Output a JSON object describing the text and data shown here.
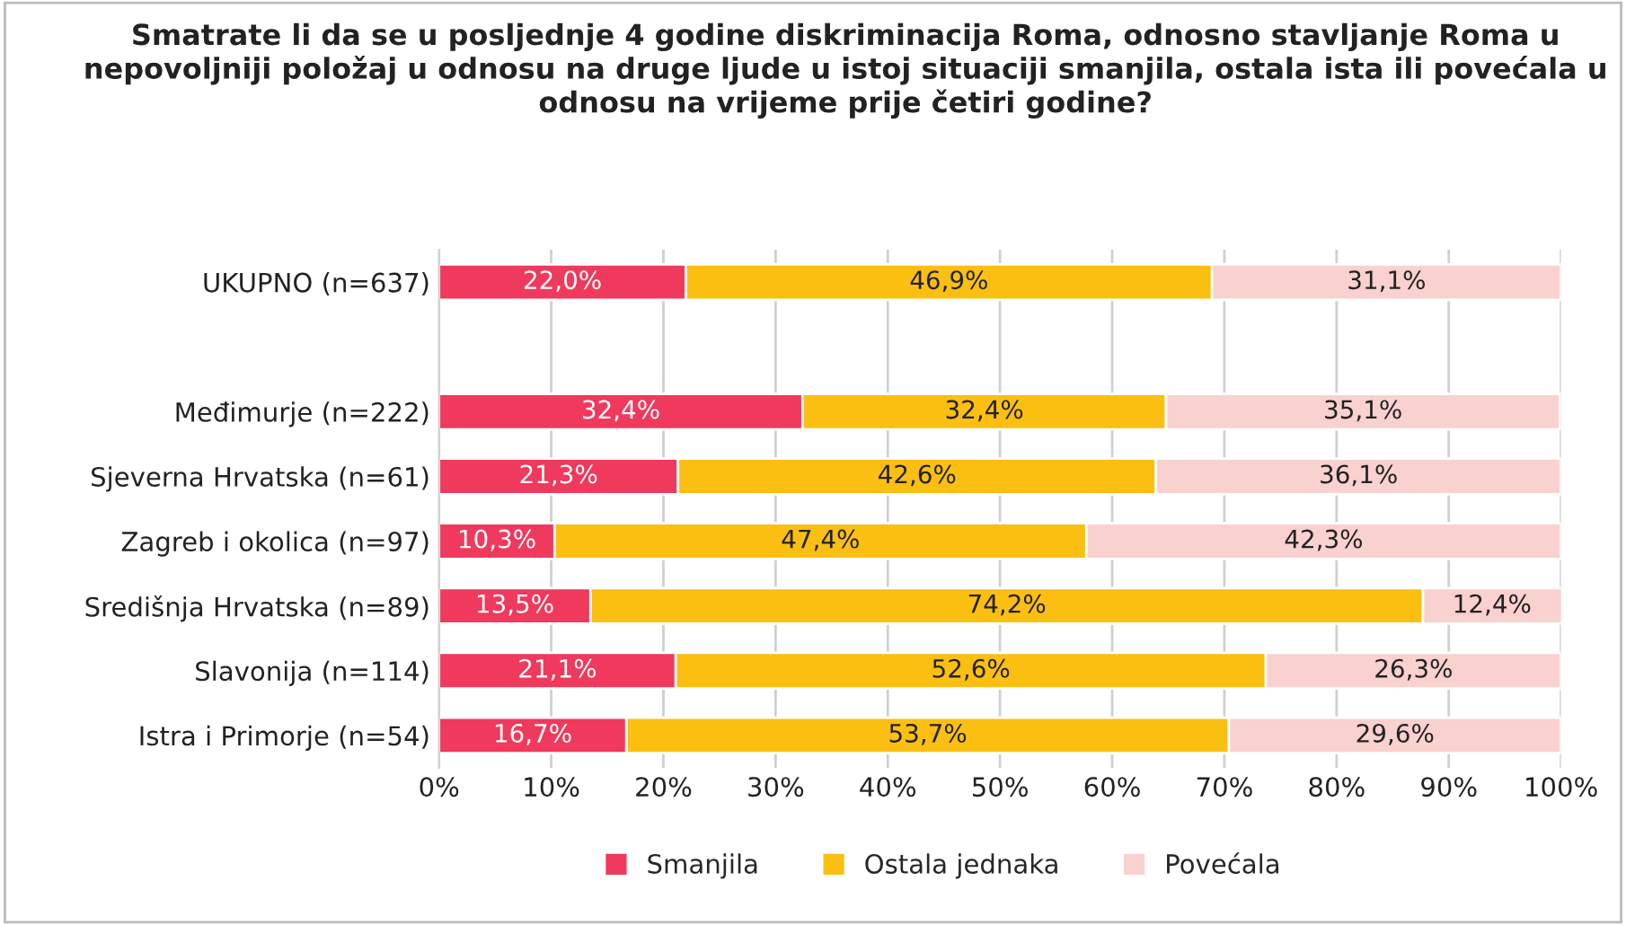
{
  "chart_data": {
    "type": "bar",
    "orientation": "horizontal",
    "stacked": true,
    "title": "Smatrate li da se u posljednje 4 godine diskriminacija Roma, odnosno stavljanje Roma u nepovoljniji položaj u odnosu na druge ljude u istoj situaciji smanjila, ostala ista ili povećala u odnosu na vrijeme prije četiri godine?",
    "categories": [
      "UKUPNO (n=637)",
      null,
      "Međimurje (n=222)",
      "Sjeverna Hrvatska (n=61)",
      "Zagreb i okolica (n=97)",
      "Središnja Hrvatska (n=89)",
      "Slavonija (n=114)",
      "Istra i Primorje (n=54)"
    ],
    "series": [
      {
        "name": "Smanjila",
        "color": "#ef3a5d",
        "values": [
          22.0,
          null,
          32.4,
          21.3,
          10.3,
          13.5,
          21.1,
          16.7
        ],
        "value_labels": [
          "22,0%",
          null,
          "32,4%",
          "21,3%",
          "10,3%",
          "13,5%",
          "21,1%",
          "16,7%"
        ]
      },
      {
        "name": "Ostala jednaka",
        "color": "#fbbf12",
        "values": [
          46.9,
          null,
          32.4,
          42.6,
          47.4,
          74.2,
          52.6,
          53.7
        ],
        "value_labels": [
          "46,9%",
          null,
          "32,4%",
          "42,6%",
          "47,4%",
          "74,2%",
          "52,6%",
          "53,7%"
        ]
      },
      {
        "name": "Povećala",
        "color": "#f9d1cf",
        "values": [
          31.1,
          null,
          35.1,
          36.1,
          42.3,
          12.4,
          26.3,
          29.6
        ],
        "value_labels": [
          "31,1%",
          null,
          "35,1%",
          "36,1%",
          "42,3%",
          "12,4%",
          "26,3%",
          "29,6%"
        ]
      }
    ],
    "xlim": [
      0,
      100
    ],
    "xticks": [
      {
        "value": 0,
        "label": "0%"
      },
      {
        "value": 10,
        "label": "10%"
      },
      {
        "value": 20,
        "label": "20%"
      },
      {
        "value": 30,
        "label": "30%"
      },
      {
        "value": 40,
        "label": "40%"
      },
      {
        "value": 50,
        "label": "50%"
      },
      {
        "value": 60,
        "label": "60%"
      },
      {
        "value": 70,
        "label": "70%"
      },
      {
        "value": 80,
        "label": "80%"
      },
      {
        "value": 90,
        "label": "90%"
      },
      {
        "value": 100,
        "label": "100%"
      }
    ],
    "grid": "x",
    "legend": "bottom"
  }
}
